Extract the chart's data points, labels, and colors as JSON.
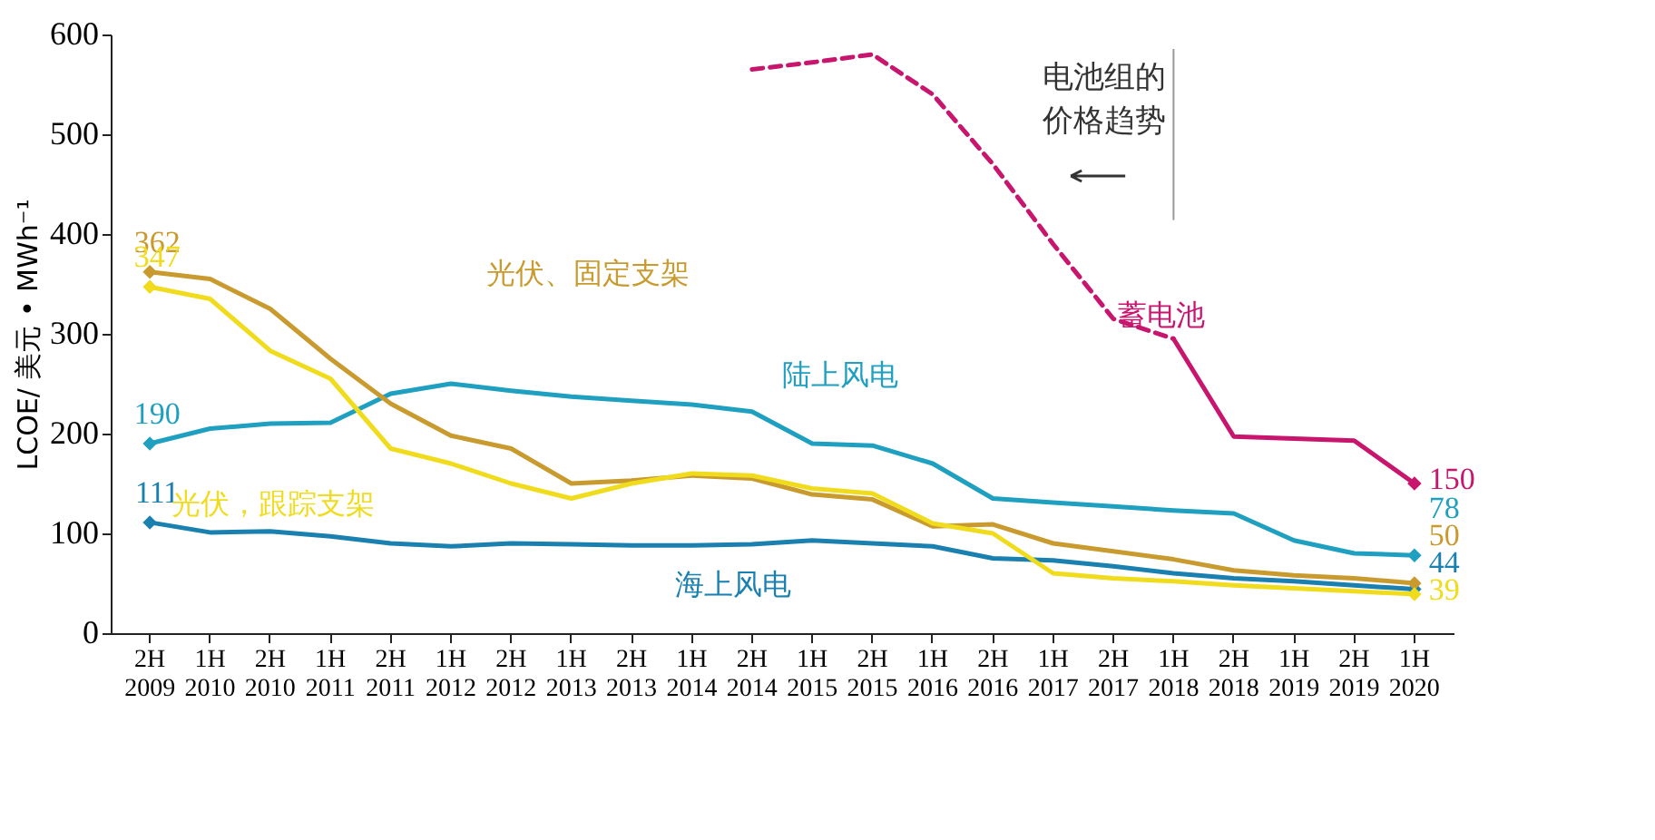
{
  "chart_data": {
    "type": "line",
    "ylabel": "LCOE/ 美元 • MWh⁻¹",
    "categories": [
      "2H 2009",
      "1H 2010",
      "2H 2010",
      "1H 2011",
      "2H 2011",
      "1H 2012",
      "2H 2012",
      "1H 2013",
      "2H 2013",
      "1H 2014",
      "2H 2014",
      "1H 2015",
      "2H 2015",
      "1H 2016",
      "2H 2016",
      "1H 2017",
      "2H 2017",
      "1H 2018",
      "2H 2018",
      "1H 2019",
      "2H 2019",
      "1H 2020"
    ],
    "series": [
      {
        "name": "陆上风电",
        "color": "#1fa0c0",
        "values": [
          190,
          205,
          210,
          211,
          240,
          250,
          243,
          237,
          233,
          229,
          222,
          190,
          188,
          170,
          135,
          131,
          127,
          123,
          120,
          93,
          80,
          78
        ],
        "value_labels": [
          "190",
          null,
          null,
          null,
          null,
          null,
          null,
          null,
          null,
          null,
          null,
          null,
          null,
          null,
          null,
          null,
          null,
          null,
          null,
          null,
          null,
          "78"
        ]
      },
      {
        "name": "海上风电",
        "color": "#1a80b0",
        "values": [
          111,
          101,
          102,
          97,
          90,
          87,
          90,
          89,
          88,
          88,
          89,
          93,
          90,
          87,
          75,
          73,
          67,
          60,
          55,
          52,
          48,
          44
        ],
        "value_labels": [
          "111",
          null,
          null,
          null,
          null,
          null,
          null,
          null,
          null,
          null,
          null,
          null,
          null,
          null,
          null,
          null,
          null,
          null,
          null,
          null,
          null,
          "44"
        ]
      },
      {
        "name": "光伏、固定支架",
        "color": "#c99a2e",
        "values": [
          362,
          355,
          325,
          275,
          230,
          198,
          185,
          150,
          153,
          158,
          155,
          139,
          134,
          107,
          109,
          90,
          82,
          74,
          63,
          58,
          55,
          50
        ],
        "value_labels": [
          "362",
          null,
          null,
          null,
          null,
          null,
          null,
          null,
          null,
          null,
          null,
          null,
          null,
          null,
          null,
          null,
          null,
          null,
          null,
          null,
          null,
          "50"
        ]
      },
      {
        "name": "光伏，跟踪支架",
        "color": "#f0dc1c",
        "values": [
          347,
          335,
          283,
          255,
          185,
          170,
          150,
          135,
          150,
          160,
          158,
          145,
          140,
          110,
          100,
          60,
          55,
          52,
          48,
          45,
          42,
          39
        ],
        "value_labels": [
          "347",
          null,
          null,
          null,
          null,
          null,
          null,
          null,
          null,
          null,
          null,
          null,
          null,
          null,
          null,
          null,
          null,
          null,
          null,
          null,
          null,
          "39"
        ]
      },
      {
        "color": "#c8156e",
        "line_style": "dashed",
        "values": [
          null,
          null,
          null,
          null,
          null,
          null,
          null,
          null,
          null,
          null,
          565,
          572,
          580,
          540,
          470,
          390,
          315,
          295,
          null,
          null,
          null,
          null
        ]
      },
      {
        "name": "蓄电池",
        "color": "#c8156e",
        "values": [
          null,
          null,
          null,
          null,
          null,
          null,
          null,
          null,
          null,
          null,
          null,
          null,
          null,
          null,
          null,
          null,
          null,
          295,
          197,
          195,
          193,
          150
        ],
        "value_labels": [
          null,
          null,
          null,
          null,
          null,
          null,
          null,
          null,
          null,
          null,
          null,
          null,
          null,
          null,
          null,
          null,
          null,
          null,
          null,
          null,
          null,
          "150"
        ]
      }
    ],
    "ylim": [
      0,
      600
    ],
    "yticks": [
      0,
      100,
      200,
      300,
      400,
      500,
      600
    ],
    "grid": false,
    "ref_lines": [
      {
        "axis": "x",
        "value": "1H 2018",
        "label": "电池组的价格趋势",
        "color": "#999999"
      }
    ]
  }
}
